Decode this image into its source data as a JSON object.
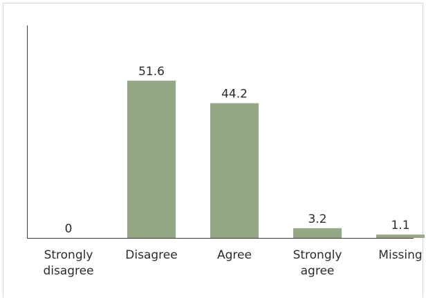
{
  "chart_data": {
    "type": "bar",
    "title": "",
    "xlabel": "",
    "ylabel": "",
    "categories": [
      [
        "Strongly",
        "disagree"
      ],
      [
        "Disagree"
      ],
      [
        "Agree"
      ],
      [
        "Strongly",
        "agree"
      ],
      [
        "Missing"
      ]
    ],
    "values": [
      0,
      51.6,
      44.2,
      3.2,
      1.1
    ],
    "value_labels": [
      "0",
      "51.6",
      "44.2",
      "3.2",
      "1.1"
    ],
    "ylim": [
      0,
      60
    ],
    "grid": false,
    "legend": "none",
    "bar_color": "#94a886",
    "axis_color": "#3a3a3a"
  }
}
